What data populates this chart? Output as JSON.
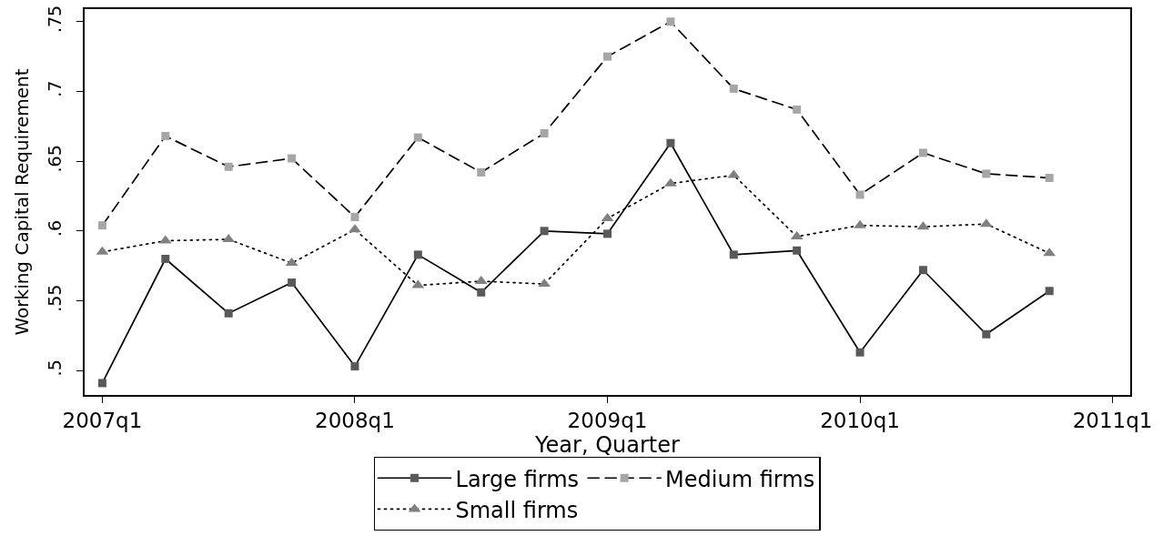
{
  "chart_data": {
    "type": "line",
    "xlabel": "Year, Quarter",
    "ylabel": "Working Capital Requirement",
    "categories": [
      "2007q1",
      null,
      null,
      null,
      "2008q1",
      null,
      null,
      null,
      "2009q1",
      null,
      null,
      null,
      "2010q1",
      null,
      null,
      null,
      "2011q1"
    ],
    "series": [
      {
        "name": "Large firms",
        "color": "#000000",
        "colors": [
          "#595959",
          "#595959",
          "#595959",
          "#595959",
          "#595959",
          "#595959",
          "#595959",
          "#595959",
          "#595959",
          "#595959",
          "#595959",
          "#595959",
          "#595959",
          "#595959",
          "#595959",
          "#595959",
          "#595959"
        ],
        "marker": "square",
        "line_style": "solid",
        "values": [
          0.491,
          0.58,
          0.541,
          0.563,
          0.503,
          0.583,
          0.556,
          0.6,
          0.598,
          0.663,
          0.583,
          0.586,
          0.513,
          0.572,
          0.526,
          0.557,
          null
        ]
      },
      {
        "name": "Medium firms",
        "color": "#000000",
        "colors": [
          "#a6a6a6",
          "#a6a6a6",
          "#a6a6a6",
          "#a6a6a6",
          "#a6a6a6",
          "#a6a6a6",
          "#a6a6a6",
          "#a6a6a6",
          "#a6a6a6",
          "#a6a6a6",
          "#a6a6a6",
          "#a6a6a6",
          "#a6a6a6",
          "#a6a6a6",
          "#a6a6a6",
          "#a6a6a6",
          "#a6a6a6"
        ],
        "marker": "square",
        "line_style": "dashed",
        "values": [
          0.604,
          0.668,
          0.646,
          0.652,
          0.61,
          0.667,
          0.642,
          0.67,
          0.725,
          0.75,
          0.702,
          0.687,
          0.626,
          0.656,
          0.641,
          0.638,
          null
        ]
      },
      {
        "name": "Small firms",
        "color": "#000000",
        "colors": [
          "#808080",
          "#808080",
          "#808080",
          "#808080",
          "#808080",
          "#808080",
          "#808080",
          "#808080",
          "#808080",
          "#808080",
          "#808080",
          "#808080",
          "#808080",
          "#808080",
          "#808080",
          "#808080",
          "#808080"
        ],
        "marker": "triangle",
        "line_style": "dotted",
        "values": [
          0.585,
          0.593,
          0.594,
          0.577,
          0.601,
          0.561,
          0.564,
          0.562,
          0.609,
          0.634,
          0.64,
          0.596,
          0.604,
          0.603,
          0.605,
          0.584,
          null
        ]
      }
    ],
    "ylim": [
      0.4825,
      0.759
    ],
    "yticks": [
      {
        "value": 0.5,
        "label": ".5"
      },
      {
        "value": 0.55,
        "label": ".55"
      },
      {
        "value": 0.6,
        "label": ".6"
      },
      {
        "value": 0.65,
        "label": ".65"
      },
      {
        "value": 0.7,
        "label": ".7"
      },
      {
        "value": 0.75,
        "label": ".75"
      }
    ],
    "legend": "bottom"
  }
}
